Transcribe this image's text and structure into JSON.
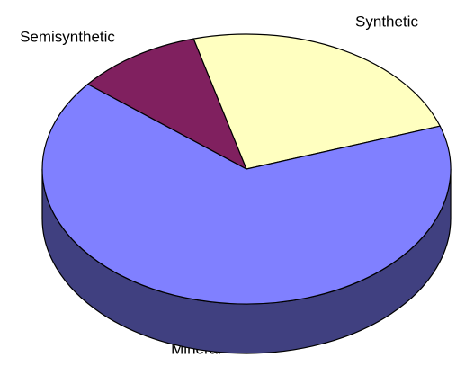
{
  "chart_data": {
    "type": "pie3d",
    "categories": [
      "Semisynthetic",
      "Synthetic",
      "Mineral"
    ],
    "values": [
      10,
      24,
      66
    ],
    "colors": [
      "#80205f",
      "#ffffc0",
      "#8080ff"
    ]
  }
}
